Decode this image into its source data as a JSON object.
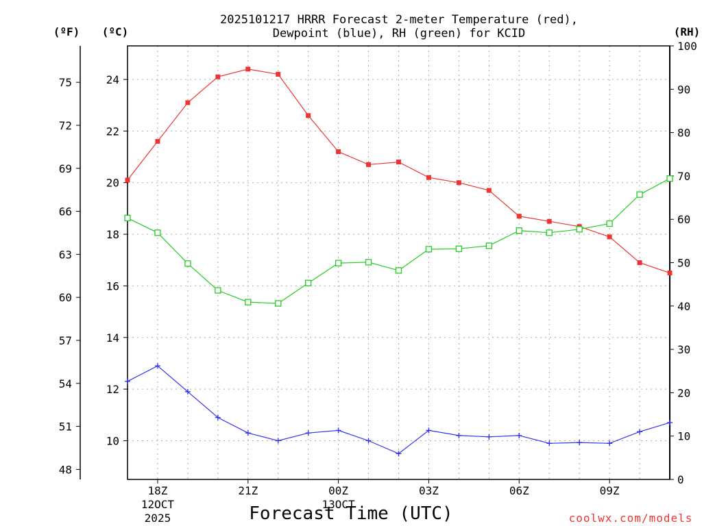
{
  "chart_data": {
    "type": "line",
    "title_line1": "2025101217 HRRR Forecast 2-meter Temperature (red),",
    "title_line2": "Dewpoint (blue), RH (green) for KCID",
    "xlabel": "Forecast Time (UTC)",
    "credit": "coolwx.com/models",
    "units": {
      "fahrenheit": "(ºF)",
      "celsius": "(ºC)",
      "rh": "(RH)"
    },
    "x_hours": [
      17,
      18,
      19,
      20,
      21,
      22,
      23,
      24,
      25,
      26,
      27,
      28,
      29,
      30,
      31,
      32,
      33,
      34,
      35
    ],
    "xlim": [
      17,
      35
    ],
    "x_ticks": [
      {
        "hour": 18,
        "label": "18Z",
        "sub1": "12OCT",
        "sub2": "2025"
      },
      {
        "hour": 21,
        "label": "21Z",
        "sub1": "",
        "sub2": ""
      },
      {
        "hour": 24,
        "label": "00Z",
        "sub1": "13OCT",
        "sub2": ""
      },
      {
        "hour": 27,
        "label": "03Z",
        "sub1": "",
        "sub2": ""
      },
      {
        "hour": 30,
        "label": "06Z",
        "sub1": "",
        "sub2": ""
      },
      {
        "hour": 33,
        "label": "09Z",
        "sub1": "",
        "sub2": ""
      }
    ],
    "grid_hours": [
      18,
      19,
      20,
      21,
      22,
      23,
      24,
      25,
      26,
      27,
      28,
      29,
      30,
      31,
      32,
      33,
      34
    ],
    "celsius_axis": {
      "ylim": [
        8.5,
        25.3
      ],
      "ticks": [
        "10",
        "12",
        "14",
        "16",
        "18",
        "20",
        "22",
        "24"
      ]
    },
    "fahrenheit_ticks": [
      "48",
      "51",
      "54",
      "57",
      "60",
      "63",
      "66",
      "69",
      "72",
      "75"
    ],
    "rh_axis": {
      "ylim": [
        0,
        100
      ],
      "ticks": [
        "0",
        "10",
        "20",
        "30",
        "40",
        "50",
        "60",
        "70",
        "80",
        "90",
        "100"
      ]
    },
    "series": [
      {
        "name": "Temperature",
        "axis": "celsius",
        "color": "#ee3333",
        "marker": "filled-square",
        "values": [
          20.1,
          21.6,
          23.1,
          24.1,
          24.4,
          24.2,
          22.6,
          21.2,
          20.7,
          20.8,
          20.2,
          20.0,
          19.7,
          18.7,
          18.5,
          18.3,
          17.9,
          16.9,
          16.5
        ]
      },
      {
        "name": "Dewpoint",
        "axis": "celsius",
        "color": "#3333ee",
        "marker": "plus",
        "values": [
          12.3,
          12.9,
          11.9,
          10.9,
          10.3,
          10.0,
          10.3,
          10.4,
          10.0,
          9.5,
          10.4,
          10.2,
          10.15,
          10.2,
          9.9,
          9.93,
          9.9,
          10.35,
          10.7
        ]
      },
      {
        "name": "RH",
        "axis": "rh",
        "color": "#22cc22",
        "marker": "open-square",
        "values": [
          60.3,
          56.9,
          49.8,
          43.6,
          40.9,
          40.6,
          45.3,
          49.9,
          50.1,
          48.2,
          53.1,
          53.2,
          53.9,
          57.4,
          56.9,
          57.7,
          59.0,
          65.7,
          69.4
        ]
      }
    ]
  }
}
